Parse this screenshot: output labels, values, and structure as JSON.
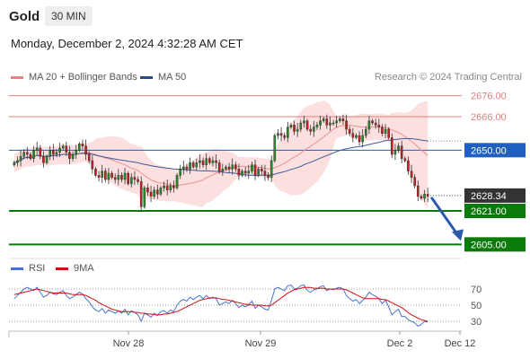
{
  "header": {
    "symbol": "Gold",
    "timeframe": "30 MIN"
  },
  "datetime": "Monday, December 2, 2024 4:32:28 AM CET",
  "legend": [
    {
      "label": "MA 20 + Bollinger Bands",
      "color": "#f08080"
    },
    {
      "label": "MA 50",
      "color": "#2a4a8a"
    }
  ],
  "copyright": "Research © 2024 Trading Central",
  "rsi_legend": [
    {
      "label": "RSI",
      "color": "#4a72c8"
    },
    {
      "label": "9MA",
      "color": "#cc1111"
    }
  ],
  "chart_data": {
    "type": "candlestick",
    "y_range": [
      2600,
      2684
    ],
    "x_ticks": [
      "Nov 28",
      "Nov 29",
      "Dec 2",
      "Dec 12"
    ],
    "last_price": 2628.34,
    "levels": [
      {
        "value": 2676.0,
        "label": "2676.00",
        "kind": "resistance-far",
        "color": "#e08080"
      },
      {
        "value": 2666.0,
        "label": "2666.00",
        "kind": "resistance",
        "color": "#e08080"
      },
      {
        "value": 2650.0,
        "label": "2650.00",
        "kind": "pivot",
        "color": "#1f5fbf"
      },
      {
        "value": 2621.0,
        "label": "2621.00",
        "kind": "support",
        "color": "#0a7a0a"
      },
      {
        "value": 2605.0,
        "label": "2605.00",
        "kind": "target",
        "color": "#0a7a0a"
      }
    ],
    "price_path": [
      2644,
      2645,
      2647,
      2649,
      2648,
      2646,
      2650,
      2651,
      2647,
      2644,
      2647,
      2650,
      2648,
      2649,
      2651,
      2652,
      2649,
      2646,
      2648,
      2650,
      2653,
      2652,
      2648,
      2645,
      2641,
      2638,
      2637,
      2640,
      2636,
      2639,
      2637,
      2636,
      2638,
      2636,
      2639,
      2634,
      2637,
      2636,
      2635,
      2623,
      2632,
      2630,
      2628,
      2631,
      2629,
      2632,
      2633,
      2631,
      2633,
      2632,
      2638,
      2641,
      2642,
      2641,
      2644,
      2642,
      2644,
      2645,
      2643,
      2646,
      2644,
      2645,
      2644,
      2640,
      2641,
      2642,
      2641,
      2643,
      2641,
      2638,
      2640,
      2639,
      2640,
      2643,
      2638,
      2641,
      2640,
      2638,
      2637,
      2645,
      2657,
      2658,
      2657,
      2656,
      2661,
      2662,
      2659,
      2660,
      2663,
      2664,
      2660,
      2659,
      2661,
      2662,
      2664,
      2665,
      2662,
      2663,
      2663,
      2664,
      2665,
      2664,
      2660,
      2658,
      2656,
      2657,
      2654,
      2657,
      2660,
      2664,
      2663,
      2662,
      2661,
      2658,
      2660,
      2656,
      2648,
      2650,
      2652,
      2646,
      2645,
      2640,
      2637,
      2633,
      2628,
      2627,
      2629,
      2628
    ],
    "rsi": {
      "ticks": [
        70,
        50,
        30
      ],
      "range": [
        20,
        80
      ],
      "rsi_values": [
        58,
        62,
        66,
        70,
        72,
        70,
        68,
        72,
        66,
        60,
        62,
        66,
        64,
        63,
        66,
        68,
        62,
        58,
        60,
        63,
        66,
        64,
        58,
        54,
        48,
        44,
        42,
        46,
        40,
        44,
        42,
        40,
        43,
        40,
        45,
        38,
        43,
        41,
        38,
        30,
        40,
        38,
        35,
        40,
        37,
        42,
        43,
        40,
        44,
        42,
        50,
        55,
        57,
        55,
        60,
        57,
        60,
        62,
        58,
        62,
        58,
        60,
        58,
        50,
        52,
        54,
        52,
        56,
        52,
        47,
        50,
        48,
        50,
        55,
        46,
        50,
        48,
        45,
        44,
        56,
        70,
        72,
        70,
        68,
        74,
        75,
        70,
        71,
        74,
        75,
        68,
        66,
        69,
        70,
        73,
        74,
        68,
        70,
        69,
        71,
        72,
        70,
        62,
        58,
        55,
        57,
        52,
        56,
        60,
        66,
        63,
        61,
        58,
        52,
        56,
        48,
        38,
        42,
        45,
        36,
        36,
        32,
        30,
        28,
        24,
        26,
        30,
        29
      ],
      "ma_values": [
        63,
        64,
        65,
        66,
        67,
        68,
        69,
        70,
        69,
        68,
        67,
        66,
        65,
        65,
        65,
        65,
        65,
        64,
        63,
        63,
        63,
        63,
        62,
        60,
        58,
        56,
        53,
        51,
        49,
        47,
        45,
        44,
        43,
        42,
        42,
        42,
        42,
        41,
        41,
        40,
        40,
        39,
        39,
        38,
        38,
        38,
        39,
        39,
        40,
        41,
        42,
        44,
        46,
        48,
        50,
        52,
        54,
        56,
        57,
        58,
        59,
        59,
        59,
        58,
        57,
        57,
        56,
        55,
        54,
        53,
        52,
        51,
        51,
        50,
        50,
        50,
        50,
        49,
        49,
        50,
        53,
        56,
        59,
        62,
        65,
        67,
        69,
        70,
        71,
        72,
        72,
        72,
        71,
        71,
        71,
        71,
        70,
        70,
        70,
        70,
        70,
        70,
        69,
        67,
        65,
        63,
        61,
        59,
        58,
        58,
        58,
        58,
        58,
        57,
        57,
        55,
        53,
        51,
        49,
        47,
        44,
        41,
        38,
        36,
        34,
        32,
        31,
        30
      ]
    }
  }
}
